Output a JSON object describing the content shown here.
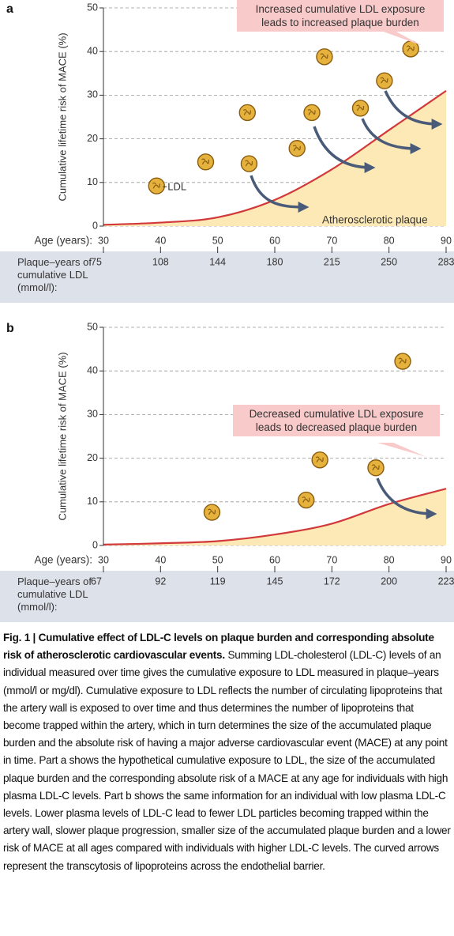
{
  "chart_data": [
    {
      "type": "risk-area",
      "panel": "a",
      "ylabel": "Cumulative lifetime risk of MACE (%)",
      "xlabel": "Age (years):",
      "xlim": [
        30,
        90
      ],
      "xticks": [
        30,
        40,
        50,
        60,
        70,
        80,
        90
      ],
      "ylim": [
        0,
        50
      ],
      "yticks": [
        0,
        10,
        20,
        30,
        40,
        50
      ],
      "grid": true,
      "curve": {
        "name": "Atherosclerotic plaque",
        "color": "#d1393a",
        "fill": "#fde9b5",
        "x": [
          30,
          40,
          50,
          60,
          70,
          80,
          90
        ],
        "values": [
          0.3,
          0.8,
          2,
          6,
          13,
          22,
          31
        ]
      },
      "particles": {
        "color": "#e6b23e",
        "label": "LDL",
        "x": [
          39.3,
          47.9,
          55.5,
          55.2,
          63.9,
          66.5,
          68.7,
          75,
          79.2,
          83.8
        ],
        "y": [
          9.2,
          14.7,
          14.3,
          26,
          17.8,
          26,
          38.8,
          27,
          33.3,
          40.6
        ]
      },
      "annotation": "Increased cumulative LDL exposure leads to increased plaque burden",
      "plaque_years": {
        "label": "Plaque–years of cumulative LDL (mmol/l):",
        "values": [
          75,
          108,
          144,
          180,
          215,
          250,
          283
        ]
      }
    },
    {
      "type": "risk-area",
      "panel": "b",
      "ylabel": "Cumulative lifetime risk of MACE (%)",
      "xlabel": "Age (years):",
      "xlim": [
        30,
        90
      ],
      "xticks": [
        30,
        40,
        50,
        60,
        70,
        80,
        90
      ],
      "ylim": [
        0,
        50
      ],
      "yticks": [
        0,
        10,
        20,
        30,
        40,
        50
      ],
      "grid": true,
      "curve": {
        "color": "#d1393a",
        "fill": "#fde9b5",
        "x": [
          30,
          40,
          50,
          60,
          70,
          80,
          90
        ],
        "values": [
          0.2,
          0.5,
          1,
          2.5,
          5,
          9.5,
          13
        ]
      },
      "particles": {
        "color": "#e6b23e",
        "x": [
          49,
          65.5,
          67.9,
          77.7,
          82.4
        ],
        "y": [
          7.6,
          10.4,
          19.6,
          17.8,
          42.2
        ]
      },
      "annotation": "Decreased cumulative LDL exposure leads to decreased plaque burden",
      "plaque_years": {
        "label": "Plaque–years of cumulative LDL (mmol/l):",
        "values": [
          67,
          92,
          119,
          145,
          172,
          200,
          223
        ]
      }
    }
  ],
  "caption": {
    "label": "Fig. 1 | Cumulative effect of LDL-C levels on plaque burden and corresponding absolute risk of atherosclerotic cardiovascular events.",
    "text": "Summing LDL-cholesterol (LDL-C) levels of an individual measured over time gives the cumulative exposure to LDL measured in plaque–years (mmol/l or mg/dl). Cumulative exposure to LDL reflects the number of circulating lipoproteins that the artery wall is exposed to over time and thus determines the number of lipoproteins that become trapped within the artery, which in turn determines the size of the accumulated plaque burden and the absolute risk of having a major adverse cardiovascular event (MACE) at any point in time. Part a shows the hypothetical cumulative exposure to LDL, the size of the accumulated plaque burden and the corresponding absolute risk of a MACE at any age for individuals with high plasma LDL-C levels. Part b shows the same information for an individual with low plasma LDL-C levels. Lower plasma levels of LDL-C lead to fewer LDL particles becoming trapped within the artery wall, slower plaque progression, smaller size of the accumulated plaque burden and a lower risk of MACE at all ages compared with individuals with higher LDL-C levels. The curved arrows represent the transcytosis of lipoproteins across the endothelial barrier."
  }
}
